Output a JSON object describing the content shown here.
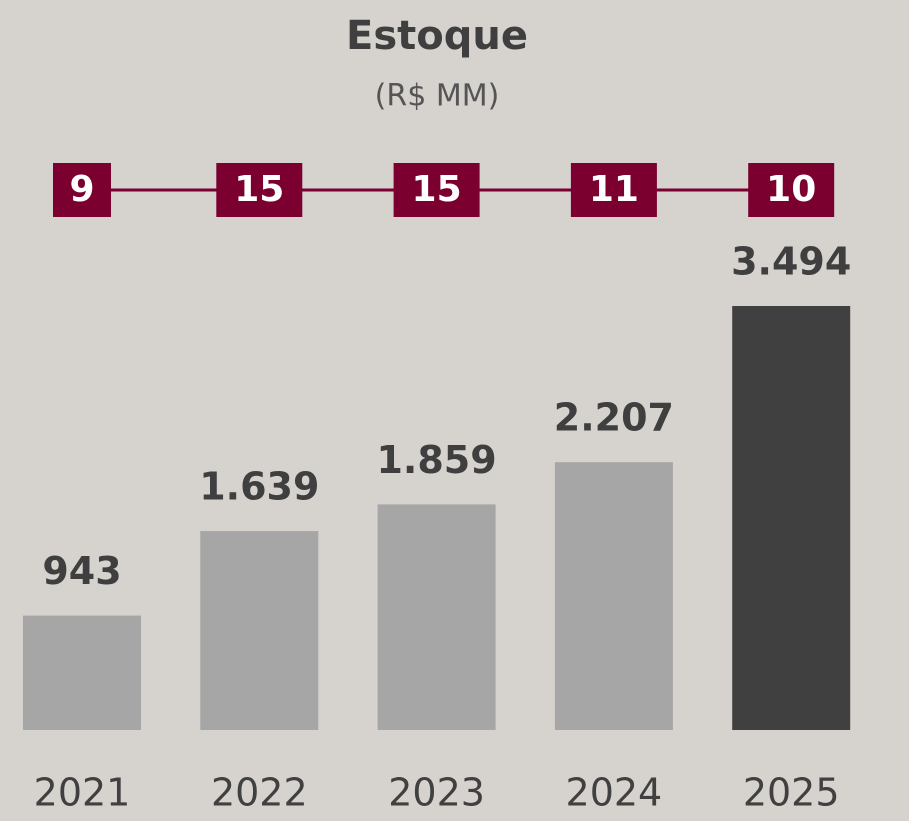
{
  "chart_data": {
    "type": "bar",
    "title": "Estoque",
    "subtitle": "(R$ MM)",
    "categories": [
      "2021",
      "2022",
      "2023",
      "2024",
      "2025"
    ],
    "series": [
      {
        "values": [
          943,
          1639,
          1859,
          2207,
          3494
        ],
        "value_labels": [
          "943",
          "1.639",
          "1.859",
          "2.207",
          "3.494"
        ],
        "colors": [
          "#a6a6a6",
          "#a6a6a6",
          "#a6a6a6",
          "#a6a6a6",
          "#404040"
        ]
      }
    ],
    "indicator": {
      "values": [
        9,
        15,
        15,
        11,
        10
      ],
      "color": "#7b0030"
    }
  }
}
